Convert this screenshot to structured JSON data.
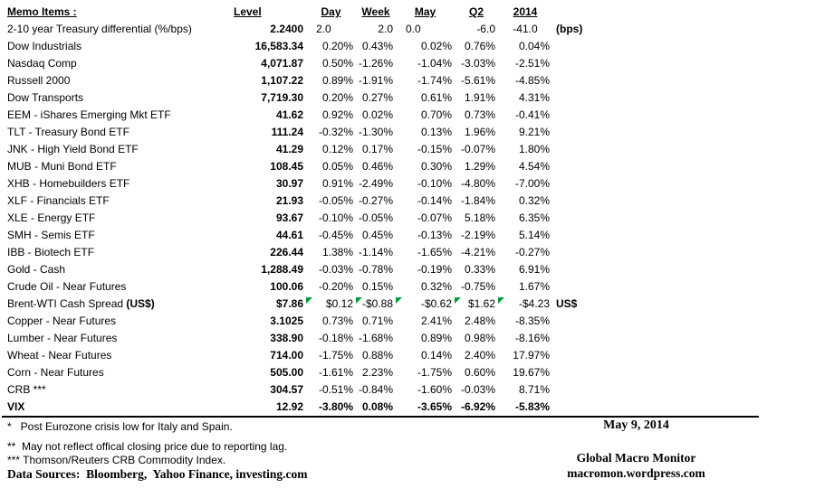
{
  "colors": {
    "text": "#000000",
    "marker_green": "#009B3B",
    "rule": "#000000",
    "background": "#ffffff"
  },
  "table": {
    "header": {
      "item": "Memo Items :",
      "level": "Level",
      "day": "Day",
      "week": "Week",
      "may": "May",
      "q2": "Q2",
      "y2014": "2014"
    },
    "rows": [
      {
        "label": "2-10 year Treasury differential (%/bps)",
        "level": "2.2400",
        "day": "2.0",
        "week": "2.0",
        "may": "0.0",
        "q2": "-6.0",
        "y2014": "-41.0",
        "note": "(bps)",
        "align": {
          "day": "left",
          "may": "left",
          "y2014": "center"
        }
      },
      {
        "label": "Dow Industrials",
        "level": "16,583.34",
        "day": "0.20%",
        "week": "0.43%",
        "may": "0.02%",
        "q2": "0.76%",
        "y2014": "0.04%"
      },
      {
        "label": "Nasdaq Comp",
        "level": "4,071.87",
        "day": "0.50%",
        "week": "-1.26%",
        "may": "-1.04%",
        "q2": "-3.03%",
        "y2014": "-2.51%"
      },
      {
        "label": "Russell 2000",
        "level": "1,107.22",
        "day": "0.89%",
        "week": "-1.91%",
        "may": "-1.74%",
        "q2": "-5.61%",
        "y2014": "-4.85%"
      },
      {
        "label": "Dow Transports",
        "level": "7,719.30",
        "day": "0.20%",
        "week": "0.27%",
        "may": "0.61%",
        "q2": "1.91%",
        "y2014": "4.31%"
      },
      {
        "label": "EEM - iShares Emerging Mkt ETF",
        "level": "41.62",
        "day": "0.92%",
        "week": "0.02%",
        "may": "0.70%",
        "q2": "0.73%",
        "y2014": "-0.41%"
      },
      {
        "label": "TLT - Treasury Bond ETF",
        "level": "111.24",
        "day": "-0.32%",
        "week": "-1.30%",
        "may": "0.13%",
        "q2": "1.96%",
        "y2014": "9.21%"
      },
      {
        "label": "JNK - High Yield Bond ETF",
        "level": "41.29",
        "day": "0.12%",
        "week": "0.17%",
        "may": "-0.15%",
        "q2": "-0.07%",
        "y2014": "1.80%"
      },
      {
        "label": "MUB - Muni Bond ETF",
        "level": "108.45",
        "day": "0.05%",
        "week": "0.46%",
        "may": "0.30%",
        "q2": "1.29%",
        "y2014": "4.54%"
      },
      {
        "label": "XHB - Homebuilders ETF",
        "level": "30.97",
        "day": "0.91%",
        "week": "-2.49%",
        "may": "-0.10%",
        "q2": "-4.80%",
        "y2014": "-7.00%"
      },
      {
        "label": "XLF - Financials ETF",
        "level": "21.93",
        "day": "-0.05%",
        "week": "-0.27%",
        "may": "-0.14%",
        "q2": "-1.84%",
        "y2014": "0.32%"
      },
      {
        "label": "XLE - Energy ETF",
        "level": "93.67",
        "day": "-0.10%",
        "week": "-0.05%",
        "may": "-0.07%",
        "q2": "5.18%",
        "y2014": "6.35%"
      },
      {
        "label": "SMH - Semis ETF",
        "level": "44.61",
        "day": "-0.45%",
        "week": "0.45%",
        "may": "-0.13%",
        "q2": "-2.19%",
        "y2014": "5.14%"
      },
      {
        "label": "IBB - Biotech ETF",
        "level": "226.44",
        "day": "1.38%",
        "week": "-1.14%",
        "may": "-1.65%",
        "q2": "-4.21%",
        "y2014": "-0.27%"
      },
      {
        "label": "Gold - Cash",
        "level": "1,288.49",
        "day": "-0.03%",
        "week": "-0.78%",
        "may": "-0.19%",
        "q2": "0.33%",
        "y2014": "6.91%"
      },
      {
        "label": "Crude Oil - Near Futures",
        "level": "100.06",
        "day": "-0.20%",
        "week": "0.15%",
        "may": "0.32%",
        "q2": "-0.75%",
        "y2014": "1.67%"
      },
      {
        "label": "Brent-WTI Cash Spread ",
        "label_bold": "(US$)",
        "level": "$7.86",
        "day": "$0.12",
        "week": "-$0.88",
        "may": "-$0.62",
        "q2": "$1.62",
        "y2014": "-$4.23",
        "note": "US$",
        "markers": true
      },
      {
        "label": "Copper - Near Futures",
        "level": "3.1025",
        "day": "0.73%",
        "week": "0.71%",
        "may": "2.41%",
        "q2": "2.48%",
        "y2014": "-8.35%"
      },
      {
        "label": "Lumber - Near Futures",
        "level": "338.90",
        "day": "-0.18%",
        "week": "-1.68%",
        "may": "0.89%",
        "q2": "0.98%",
        "y2014": "-8.16%"
      },
      {
        "label": "Wheat - Near Futures",
        "level": "714.00",
        "day": "-1.75%",
        "week": "0.88%",
        "may": "0.14%",
        "q2": "2.40%",
        "y2014": "17.97%"
      },
      {
        "label": "Corn - Near Futures",
        "level": "505.00",
        "day": "-1.61%",
        "week": "2.23%",
        "may": "-1.75%",
        "q2": "0.60%",
        "y2014": "19.67%"
      },
      {
        "label": "CRB ***",
        "level": "304.57",
        "day": "-0.51%",
        "week": "-0.84%",
        "may": "-1.60%",
        "q2": "-0.03%",
        "y2014": "8.71%"
      },
      {
        "label": "VIX",
        "bold": true,
        "level": "12.92",
        "day": "-3.80%",
        "week": "0.08%",
        "may": "-3.65%",
        "q2": "-6.92%",
        "y2014": "-5.83%"
      }
    ]
  },
  "footnotes": [
    "*   Post Eurozone crisis low for Italy and Spain.",
    "**  May not reflect offical closing price due to reporting lag.",
    "*** Thomson/Reuters CRB Commodity Index."
  ],
  "data_sources": "Data Sources:  Bloomberg,  Yahoo Finance, investing.com",
  "branding": {
    "date": "May 9, 2014",
    "name": "Global Macro Monitor",
    "url": "macromon.wordpress.com"
  }
}
